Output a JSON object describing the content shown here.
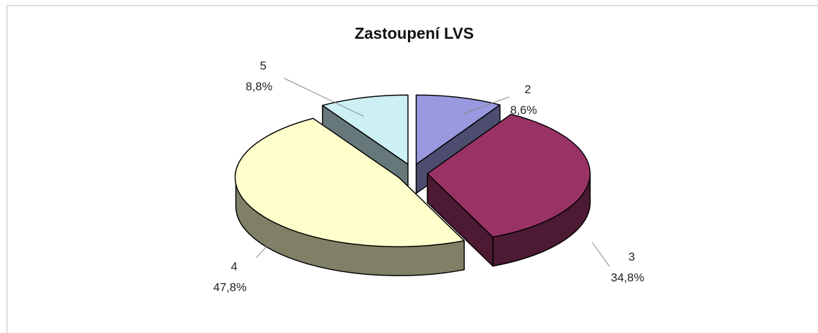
{
  "chart_data": {
    "type": "pie3d",
    "title": "Zastoupení LVS",
    "categories": [
      "2",
      "3",
      "4",
      "5"
    ],
    "values": [
      8.6,
      34.8,
      47.8,
      8.8
    ],
    "value_labels": [
      "8,6%",
      "34,8%",
      "47,8%",
      "8,8%"
    ],
    "colors": [
      "#9999e0",
      "#993366",
      "#ffffcc",
      "#ccf0f4"
    ]
  }
}
